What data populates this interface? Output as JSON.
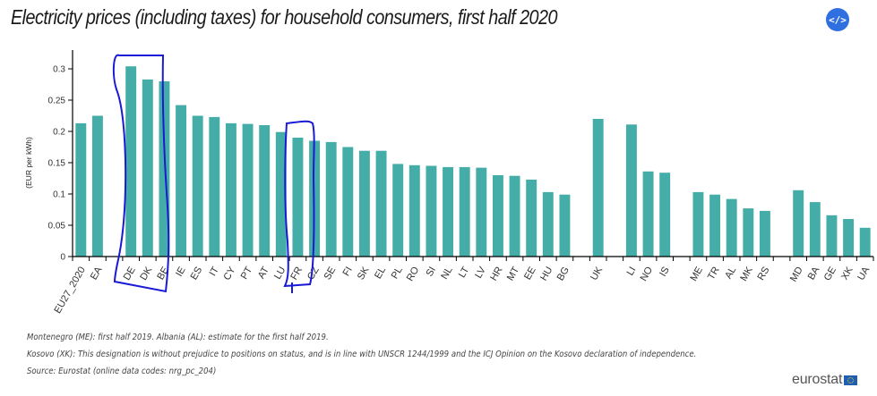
{
  "header": {
    "title": "Electricity prices (including taxes) for household consumers, first half 2020",
    "embed_button_label": "</>"
  },
  "chart_data": {
    "type": "bar",
    "title": "Electricity prices (including taxes) for household consumers, first half 2020",
    "xlabel": "",
    "ylabel": "(EUR per kWh)",
    "ylim": [
      0,
      0.33
    ],
    "yticks": [
      0,
      0.05,
      0.1,
      0.15,
      0.2,
      0.25,
      0.3
    ],
    "ytick_labels": [
      "0",
      "0.05",
      "0.1",
      "0.15",
      "0.2",
      "0.25",
      "0.3"
    ],
    "grid": false,
    "bar_color": "#45ada8",
    "groups": [
      {
        "categories": [
          "EU27_2020",
          "EA"
        ],
        "values": [
          0.213,
          0.225
        ]
      },
      {
        "categories": [
          "DE",
          "DK",
          "BE",
          "IE",
          "ES",
          "IT",
          "CY",
          "PT",
          "AT",
          "LU",
          "FR",
          "CZ",
          "SE",
          "FI",
          "SK",
          "EL",
          "PL",
          "RO",
          "SI",
          "NL",
          "LT",
          "LV",
          "HR",
          "MT",
          "EE",
          "HU",
          "BG"
        ],
        "values": [
          0.304,
          0.283,
          0.28,
          0.242,
          0.225,
          0.223,
          0.213,
          0.212,
          0.21,
          0.199,
          0.19,
          0.185,
          0.183,
          0.175,
          0.169,
          0.169,
          0.148,
          0.146,
          0.145,
          0.143,
          0.143,
          0.142,
          0.13,
          0.129,
          0.123,
          0.103,
          0.099
        ]
      },
      {
        "categories": [
          "UK"
        ],
        "values": [
          0.22
        ]
      },
      {
        "categories": [
          "LI",
          "NO",
          "IS"
        ],
        "values": [
          0.211,
          0.136,
          0.134
        ]
      },
      {
        "categories": [
          "ME",
          "TR",
          "AL",
          "MK",
          "RS"
        ],
        "values": [
          0.103,
          0.099,
          0.092,
          0.077,
          0.073
        ]
      },
      {
        "categories": [
          "MD",
          "BA",
          "GE",
          "XK",
          "UA"
        ],
        "values": [
          0.106,
          0.087,
          0.066,
          0.06,
          0.046
        ]
      }
    ]
  },
  "footnotes": [
    "Montenegro (ME): first half 2019. Albania (AL): estimate for the first half 2019.",
    "Kosovo (XK): This designation is without prejudice to positions on status, and is in line with UNSCR 1244/1999 and the ICJ Opinion on the Kosovo declaration of independence.",
    "Source: Eurostat (online data codes: nrg_pc_204)"
  ],
  "logo": {
    "text": "eurostat"
  },
  "annotations": {
    "color": "#1a1ad6",
    "highlighted": [
      "DE",
      "DK",
      "BE",
      "FR",
      "CZ"
    ]
  }
}
